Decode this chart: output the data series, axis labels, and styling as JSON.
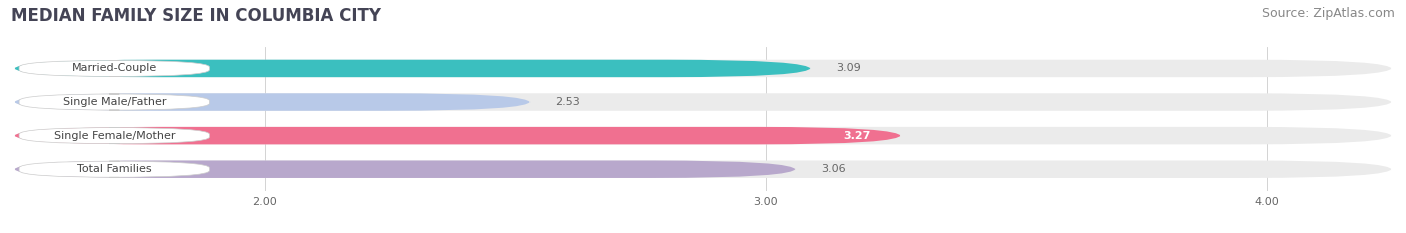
{
  "title": "MEDIAN FAMILY SIZE IN COLUMBIA CITY",
  "source": "Source: ZipAtlas.com",
  "categories": [
    "Married-Couple",
    "Single Male/Father",
    "Single Female/Mother",
    "Total Families"
  ],
  "values": [
    3.09,
    2.53,
    3.27,
    3.06
  ],
  "bar_colors": [
    "#3bbfbf",
    "#b8c9e8",
    "#f07090",
    "#b8a8cc"
  ],
  "xlim_min": 1.5,
  "xlim_max": 4.25,
  "xticks": [
    2.0,
    3.0,
    4.0
  ],
  "xtick_labels": [
    "2.00",
    "3.00",
    "4.00"
  ],
  "background_color": "#ffffff",
  "bar_bg_color": "#ebebeb",
  "label_bg_color": "#ffffff",
  "label_color": "#444444",
  "value_color_inside": "#ffffff",
  "value_color_outside": "#666666",
  "title_fontsize": 12,
  "source_fontsize": 9,
  "label_fontsize": 8,
  "value_fontsize": 8,
  "tick_fontsize": 8,
  "bar_height": 0.52,
  "value_inside_threshold": 3.2
}
